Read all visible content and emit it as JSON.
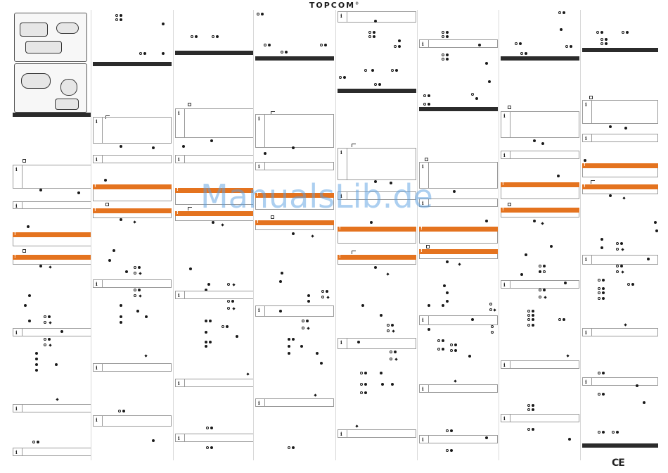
{
  "header": {
    "brand": "TOPCOM",
    "brand_mark": "®"
  },
  "watermark": "ManualsLib.de",
  "footer": {
    "ce_mark": "CE"
  },
  "icons": {
    "note": "info-icon",
    "warning": "warning-icon",
    "filled_bullet": "filled-dot-icon",
    "open_bullet": "open-dot-icon",
    "diamond_bullet": "diamond-icon"
  },
  "colors": {
    "warning": "#e4731f",
    "section_bar": "#2b2b2b",
    "watermark": "#5aa0e1"
  },
  "note_glyph": "i",
  "warn_glyph": "!"
}
